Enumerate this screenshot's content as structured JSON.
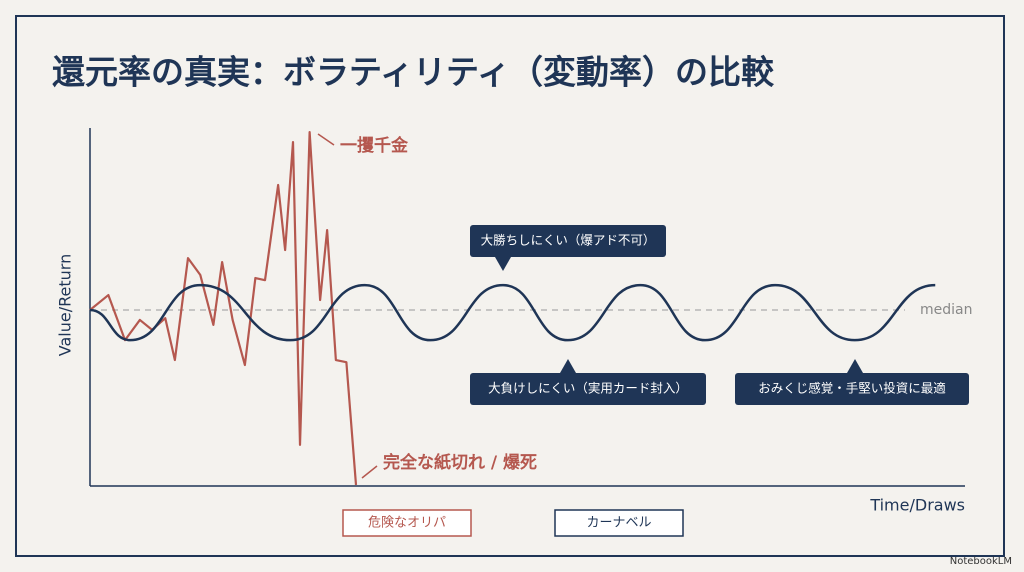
{
  "chart_data": {
    "type": "line",
    "title": "還元率の真実：ボラティリティ（変動率）の比較",
    "x_label": "Time/Draws",
    "y_label": "Value/Return",
    "xlim": [
      0,
      100
    ],
    "ylim": [
      0,
      100
    ],
    "reference_line": {
      "value": 49.3,
      "label": "median"
    },
    "series": [
      {
        "name": "危険なオリパ",
        "color": "#b5584f",
        "smooth": false,
        "x": [
          0,
          2.1,
          4.0,
          5.7,
          7.1,
          8.6,
          9.7,
          11.2,
          12.6,
          14.1,
          15.1,
          16.3,
          17.7,
          18.9,
          20.0,
          21.5,
          22.3,
          23.2,
          24.0,
          25.1,
          26.3,
          27.1,
          28.1,
          29.3,
          30.4
        ],
        "values": [
          49.3,
          53.5,
          40.8,
          46.5,
          43.7,
          47.0,
          35.2,
          63.9,
          59.2,
          45.1,
          62.8,
          46.5,
          33.8,
          58.3,
          57.7,
          84.5,
          66.2,
          96.6,
          11.3,
          99.4,
          52.1,
          71.8,
          35.2,
          34.6,
          0
        ]
      },
      {
        "name": "カーナベル",
        "color": "#1f3556",
        "smooth": true,
        "x": [
          0,
          4.6,
          12.6,
          22.9,
          31.4,
          38.9,
          47.2,
          54.6,
          62.9,
          70.3,
          78.3,
          87.4,
          96.6
        ],
        "values": [
          49.3,
          40.8,
          56.3,
          40.8,
          56.3,
          40.8,
          56.3,
          40.8,
          56.3,
          40.8,
          56.3,
          40.8,
          56.3
        ]
      }
    ],
    "annotations": [
      {
        "text": "一攫千金",
        "series": 0
      },
      {
        "text": "完全な紙切れ / 爆死",
        "series": 0
      },
      {
        "text": "大勝ちしにくい（爆アド不可）",
        "series": 1
      },
      {
        "text": "大負けしにくい（実用カード封入）",
        "series": 1
      },
      {
        "text": "おみくじ感覚・手堅い投資に最適",
        "series": 1
      }
    ]
  },
  "watermark": "NotebookLM"
}
